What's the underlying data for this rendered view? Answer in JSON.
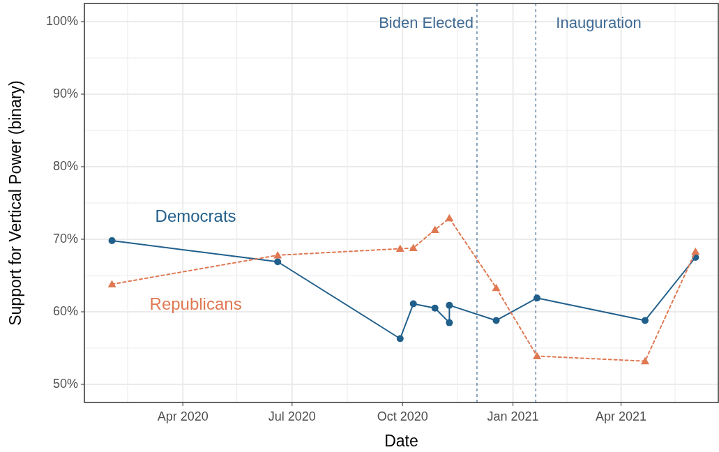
{
  "chart_data": {
    "type": "line",
    "xlabel": "Date",
    "ylabel": "Support for Vertical Power (binary)",
    "xlim": [
      "2020-01-10",
      "2021-06-21"
    ],
    "ylim": [
      47.5,
      102.5
    ],
    "xticks": [
      {
        "value": "2020-02-15",
        "label": null
      },
      {
        "value": "2020-04-01",
        "label": "Apr 2020"
      },
      {
        "value": "2020-05-16",
        "label": null
      },
      {
        "value": "2020-07-01",
        "label": "Jul 2020"
      },
      {
        "value": "2020-08-16",
        "label": null
      },
      {
        "value": "2020-10-01",
        "label": "Oct 2020"
      },
      {
        "value": "2020-11-16",
        "label": null
      },
      {
        "value": "2021-01-01",
        "label": "Jan 2021"
      },
      {
        "value": "2021-02-15",
        "label": null
      },
      {
        "value": "2021-04-01",
        "label": "Apr 2021"
      },
      {
        "value": "2021-05-16",
        "label": null
      }
    ],
    "yticks": [
      {
        "value": 50,
        "label": "50%"
      },
      {
        "value": 55,
        "label": null
      },
      {
        "value": 60,
        "label": "60%"
      },
      {
        "value": 65,
        "label": null
      },
      {
        "value": 70,
        "label": "70%"
      },
      {
        "value": 75,
        "label": null
      },
      {
        "value": 80,
        "label": "80%"
      },
      {
        "value": 85,
        "label": null
      },
      {
        "value": 90,
        "label": "90%"
      },
      {
        "value": 95,
        "label": null
      },
      {
        "value": 100,
        "label": "100%"
      }
    ],
    "grid": true,
    "series": [
      {
        "name": "Democrats",
        "color": "#215f8b",
        "marker": "circle",
        "line_style": "solid",
        "x": [
          "2020-02-02",
          "2020-06-19",
          "2020-09-29",
          "2020-10-10",
          "2020-10-28",
          "2020-11-09",
          "2020-11-09",
          "2020-12-18",
          "2021-01-21",
          "2021-04-21",
          "2021-06-02"
        ],
        "values": [
          69.8,
          66.9,
          56.3,
          61.1,
          60.5,
          58.5,
          60.9,
          58.8,
          61.9,
          58.8,
          67.5
        ]
      },
      {
        "name": "Republicans",
        "color": "#e07852",
        "marker": "triangle",
        "line_style": "dashed",
        "x": [
          "2020-02-02",
          "2020-06-19",
          "2020-09-29",
          "2020-10-10",
          "2020-10-28",
          "2020-11-09",
          "2020-12-18",
          "2021-01-21",
          "2021-04-21",
          "2021-06-02"
        ],
        "values": [
          63.8,
          67.8,
          68.7,
          68.8,
          71.3,
          72.9,
          63.3,
          53.9,
          53.2,
          68.3
        ]
      }
    ],
    "ref_lines": [
      {
        "axis": "x",
        "value": "2020-12-02",
        "label": "Biden Elected",
        "color": "#3f6a93",
        "line_style": "dashed"
      },
      {
        "axis": "x",
        "value": "2021-01-20",
        "label": "Inauguration",
        "color": "#3f6a93",
        "line_style": "dashed"
      }
    ]
  }
}
